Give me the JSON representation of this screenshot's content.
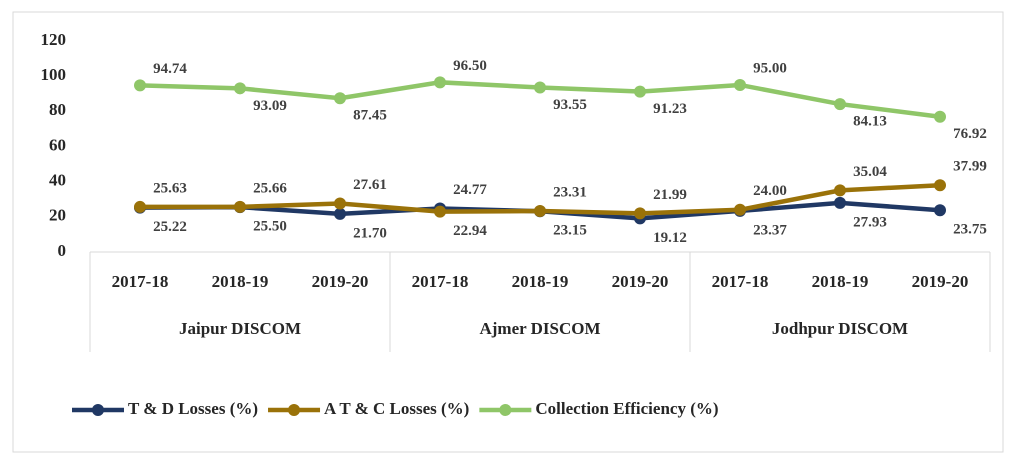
{
  "chart_data": {
    "type": "line",
    "categories": [
      "2017-18",
      "2018-19",
      "2019-20",
      "2017-18",
      "2018-19",
      "2019-20",
      "2017-18",
      "2018-19",
      "2019-20"
    ],
    "groups": [
      "Jaipur DISCOM",
      "Ajmer DISCOM",
      "Jodhpur DISCOM"
    ],
    "series": [
      {
        "name": "T & D Losses (%)",
        "color": "#203864",
        "values": [
          25.22,
          25.5,
          21.7,
          24.77,
          23.15,
          19.12,
          23.37,
          27.93,
          23.75
        ],
        "value_labels": [
          "25.22",
          "25.50",
          "21.70",
          "24.77",
          "23.15",
          "19.12",
          "23.37",
          "27.93",
          "23.75"
        ]
      },
      {
        "name": "A T & C Losses (%)",
        "color": "#9a7209",
        "values": [
          25.63,
          25.66,
          27.61,
          22.94,
          23.31,
          21.99,
          24,
          35.04,
          37.99
        ],
        "value_labels": [
          "25.63",
          "25.66",
          "27.61",
          "22.94",
          "23.31",
          "21.99",
          "24.00",
          "35.04",
          "37.99"
        ]
      },
      {
        "name": "Collection Efficiency (%)",
        "color": "#8fc668",
        "values": [
          94.74,
          93.09,
          87.45,
          96.5,
          93.55,
          91.23,
          95,
          84.13,
          76.92
        ],
        "value_labels": [
          "94.74",
          "93.09",
          "87.45",
          "96.50",
          "93.55",
          "91.23",
          "95.00",
          "84.13",
          "76.92"
        ]
      }
    ],
    "ylim": [
      0,
      120
    ],
    "yticks": [
      0,
      20,
      40,
      60,
      80,
      100,
      120
    ],
    "grid": false,
    "legend": "bottom"
  }
}
